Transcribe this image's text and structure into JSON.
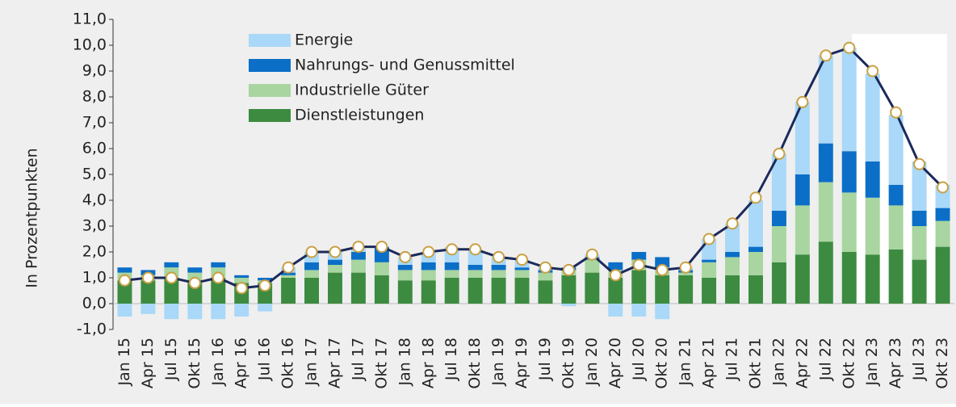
{
  "chart_data": {
    "type": "stacked_bar_line",
    "y_label": "In Prozentpunkten",
    "categories": [
      "Jan 15",
      "Apr 15",
      "Jul 15",
      "Okt 15",
      "Jan 16",
      "Apr 16",
      "Jul 16",
      "Okt 16",
      "Jan 17",
      "Apr 17",
      "Jul 17",
      "Okt 17",
      "Jan 18",
      "Apr 18",
      "Jul 18",
      "Okt 18",
      "Jan 19",
      "Apr 19",
      "Jul 19",
      "Okt 19",
      "Jan 20",
      "Apr 20",
      "Jul 20",
      "Okt 20",
      "Jan 21",
      "Apr 21",
      "Jul 21",
      "Okt 21",
      "Jan 22",
      "Apr 22",
      "Jul 22",
      "Okt 22",
      "Jan 23",
      "Apr 23",
      "Jul 23",
      "Okt 23"
    ],
    "series": [
      {
        "name": "Dienstleistungen",
        "color": "#3d8b40",
        "values": [
          0.9,
          0.9,
          1.0,
          0.8,
          1.0,
          0.8,
          0.8,
          1.0,
          1.0,
          1.2,
          1.2,
          1.1,
          0.9,
          0.9,
          1.0,
          1.0,
          1.0,
          1.0,
          0.9,
          1.1,
          1.2,
          1.0,
          1.3,
          1.1,
          1.1,
          1.0,
          1.1,
          1.1,
          1.6,
          1.9,
          2.4,
          2.0,
          1.9,
          2.1,
          1.7,
          2.2
        ]
      },
      {
        "name": "Industrielle Güter",
        "color": "#a8d5a0",
        "values": [
          0.3,
          0.2,
          0.4,
          0.4,
          0.4,
          0.2,
          0.1,
          0.1,
          0.3,
          0.3,
          0.5,
          0.5,
          0.4,
          0.4,
          0.3,
          0.3,
          0.3,
          0.3,
          0.3,
          0.2,
          0.5,
          0.3,
          0.4,
          0.3,
          0.1,
          0.6,
          0.7,
          0.9,
          1.4,
          1.9,
          2.3,
          2.3,
          2.2,
          1.7,
          1.3,
          1.0
        ]
      },
      {
        "name": "Nahrungs- und Genussmittel",
        "color": "#0b6fc7",
        "values": [
          0.2,
          0.2,
          0.2,
          0.2,
          0.2,
          0.1,
          0.1,
          0.1,
          0.3,
          0.2,
          0.3,
          0.6,
          0.2,
          0.3,
          0.3,
          0.2,
          0.2,
          0.1,
          0.1,
          0.1,
          0.1,
          0.3,
          0.3,
          0.4,
          0.1,
          0.1,
          0.2,
          0.2,
          0.6,
          1.2,
          1.5,
          1.6,
          1.4,
          0.8,
          0.6,
          0.5
        ]
      },
      {
        "name": "Energie",
        "color": "#a9d8f8",
        "values": [
          -0.5,
          -0.4,
          -0.6,
          -0.6,
          -0.6,
          -0.5,
          -0.3,
          0.2,
          0.4,
          0.3,
          0.2,
          0.0,
          0.3,
          0.4,
          0.6,
          0.6,
          0.3,
          0.3,
          0.1,
          -0.1,
          0.1,
          -0.5,
          -0.5,
          -0.6,
          0.1,
          0.8,
          1.1,
          1.8,
          2.2,
          2.8,
          3.4,
          4.0,
          3.4,
          2.7,
          1.9,
          0.9
        ]
      }
    ],
    "line": {
      "color": "#1b2a5c",
      "marker_color": "#c9a043",
      "values": [
        0.9,
        1.0,
        1.0,
        0.8,
        1.0,
        0.6,
        0.7,
        1.4,
        2.0,
        2.0,
        2.2,
        2.2,
        1.8,
        2.0,
        2.1,
        2.1,
        1.8,
        1.7,
        1.4,
        1.3,
        1.9,
        1.1,
        1.5,
        1.3,
        1.4,
        2.5,
        3.1,
        4.1,
        5.8,
        7.8,
        9.6,
        9.9,
        9.0,
        7.4,
        5.4,
        4.5
      ]
    },
    "ylim": [
      -1,
      11
    ],
    "yticks": [
      {
        "value": -1,
        "label": "-1,0"
      },
      {
        "value": 0,
        "label": "0,0"
      },
      {
        "value": 1,
        "label": "1,0"
      },
      {
        "value": 2,
        "label": "2,0"
      },
      {
        "value": 3,
        "label": "3,0"
      },
      {
        "value": 4,
        "label": "4,0"
      },
      {
        "value": 5,
        "label": "5,0"
      },
      {
        "value": 6,
        "label": "6,0"
      },
      {
        "value": 7,
        "label": "7,0"
      },
      {
        "value": 8,
        "label": "8,0"
      },
      {
        "value": 9,
        "label": "9,0"
      },
      {
        "value": 10,
        "label": "10,0"
      },
      {
        "value": 11,
        "label": "11,0"
      }
    ]
  }
}
